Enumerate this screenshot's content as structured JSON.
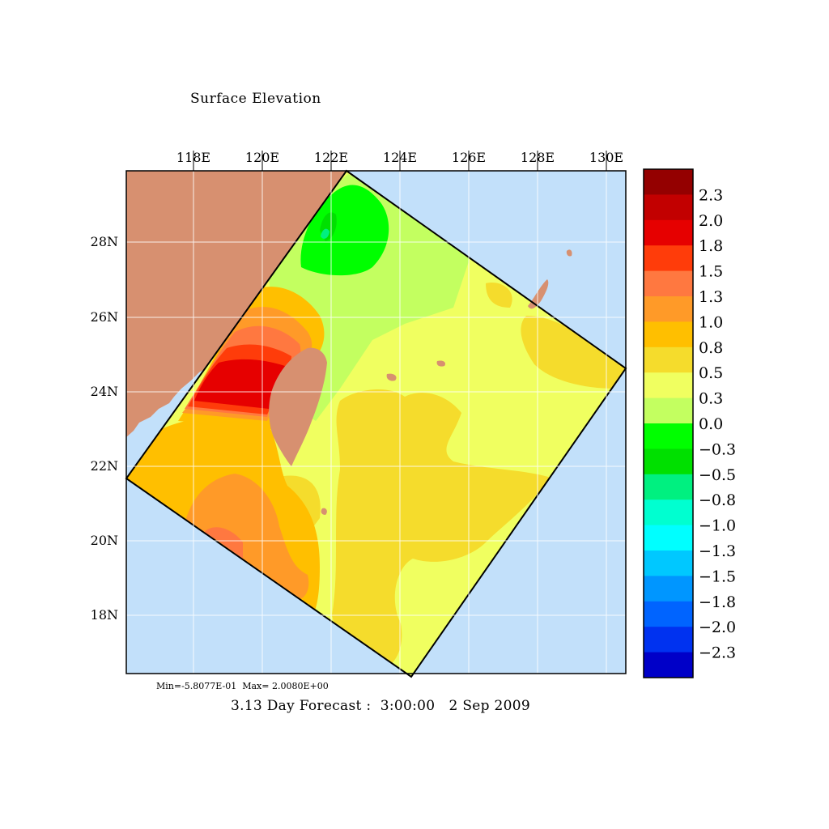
{
  "title": "Surface Elevation",
  "stats": "Min=-5.8077E-01  Max= 2.0080E+00",
  "forecast": "3.13 Day Forecast :  3:00:00   2 Sep 2009",
  "lon_labels": [
    "118E",
    "120E",
    "122E",
    "124E",
    "126E",
    "128E",
    "130E"
  ],
  "lat_labels": [
    "28N",
    "26N",
    "24N",
    "22N",
    "20N",
    "18N"
  ],
  "colorbar": {
    "labels": [
      "2.3",
      "2.0",
      "1.8",
      "1.5",
      "1.3",
      "1.0",
      "0.8",
      "0.5",
      "0.3",
      "0.0",
      "−0.3",
      "−0.5",
      "−0.8",
      "−1.0",
      "−1.3",
      "−1.5",
      "−1.8",
      "−2.0",
      "−2.3"
    ],
    "colors": [
      "#940000",
      "#c20000",
      "#e60000",
      "#ff3c0a",
      "#ff7840",
      "#ff9a28",
      "#ffbf00",
      "#f5dc2c",
      "#f0ff60",
      "#c3ff60",
      "#00ff00",
      "#00e000",
      "#00f080",
      "#00ffd0",
      "#00ffff",
      "#00c8ff",
      "#0096ff",
      "#0064ff",
      "#0032f0",
      "#0000c8"
    ]
  },
  "colors": {
    "ocean": "#c2e0fa",
    "land": "#d79070"
  }
}
